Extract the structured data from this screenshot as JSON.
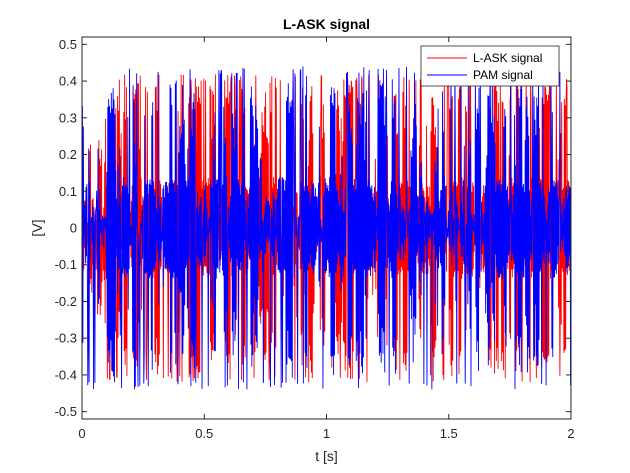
{
  "chart_data": {
    "type": "line",
    "title": "L-ASK signal",
    "xlabel": "t [s]",
    "ylabel": "[V]",
    "xlim": [
      0,
      2
    ],
    "ylim": [
      -0.52,
      0.52
    ],
    "xticks": [
      "0",
      "0.5",
      "1",
      "1.5",
      "2"
    ],
    "xtick_values": [
      0,
      0.5,
      1,
      1.5,
      2
    ],
    "yticks": [
      "-0.5",
      "-0.4",
      "-0.3",
      "-0.2",
      "-0.1",
      "0",
      "0.1",
      "0.2",
      "0.3",
      "0.4",
      "0.5"
    ],
    "ytick_values": [
      -0.5,
      -0.4,
      -0.3,
      -0.2,
      -0.1,
      0,
      0.1,
      0.2,
      0.3,
      0.4,
      0.5
    ],
    "grid": false,
    "legend_position": "top-right",
    "series": [
      {
        "name": "L-ASK signal",
        "color": "#ff0000",
        "style": "dense oscillation",
        "envelope": [
          -0.42,
          0.42
        ],
        "levels": [
          -0.42,
          -0.14,
          0.14,
          0.42
        ]
      },
      {
        "name": "PAM signal",
        "color": "#0000ff",
        "style": "dense oscillation",
        "envelope": [
          -0.44,
          0.44
        ],
        "levels": [
          -0.42,
          -0.14,
          0.14,
          0.42
        ]
      }
    ]
  }
}
